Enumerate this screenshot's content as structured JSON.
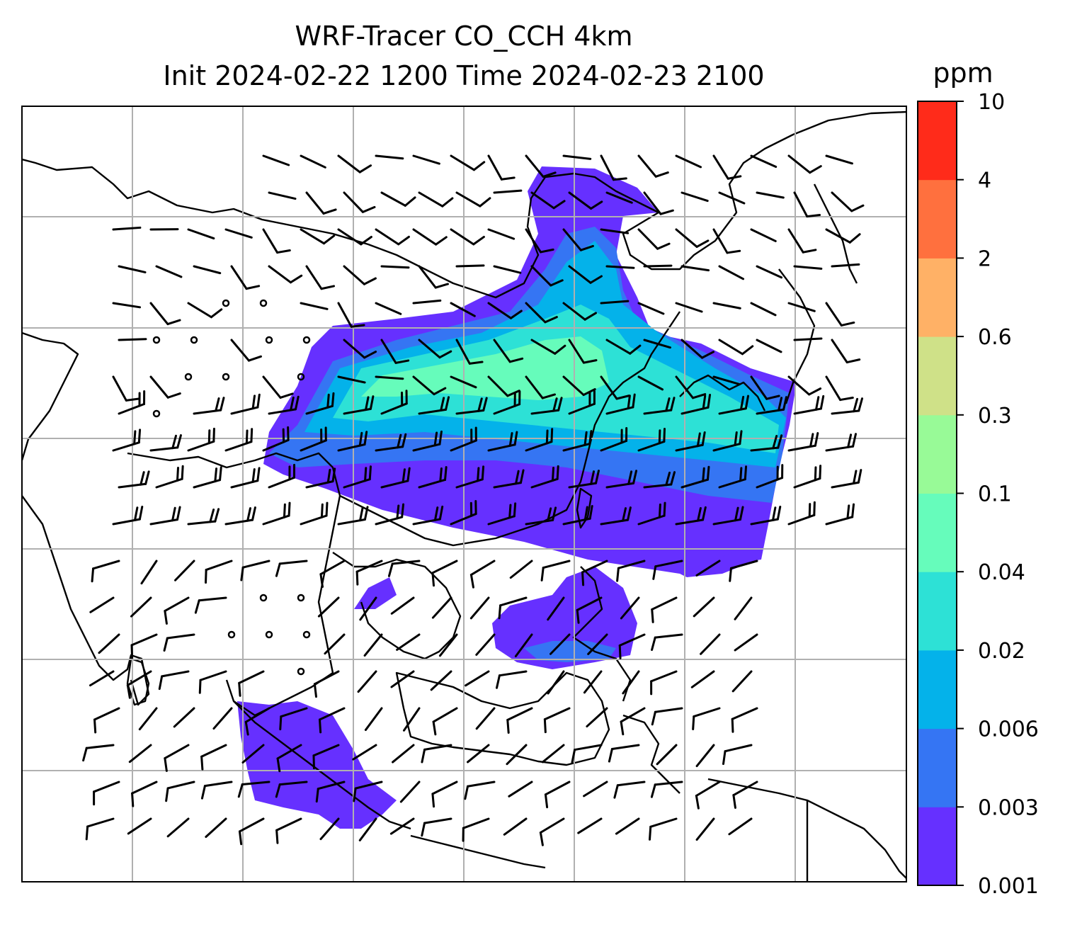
{
  "title_line1": "WRF-Tracer CO_CCH 4km",
  "title_line2": "Init 2024-02-22 1200 Time 2024-02-23 2100",
  "colorbar": {
    "unit": "ppm",
    "levels": [
      "0.001",
      "0.003",
      "0.006",
      "0.02",
      "0.04",
      "0.1",
      "0.3",
      "0.6",
      "2",
      "4",
      "10"
    ],
    "colors": [
      "#6630ff",
      "#3575f3",
      "#04b2ea",
      "#2de1d6",
      "#66fcbb",
      "#98fa97",
      "#cfe188",
      "#ffb166",
      "#ff703e",
      "#ff2b1a"
    ]
  },
  "map_layers": {
    "coastlines": true,
    "gridlines": true,
    "wind_barbs": true,
    "tracer_field": "CO_CCH"
  }
}
